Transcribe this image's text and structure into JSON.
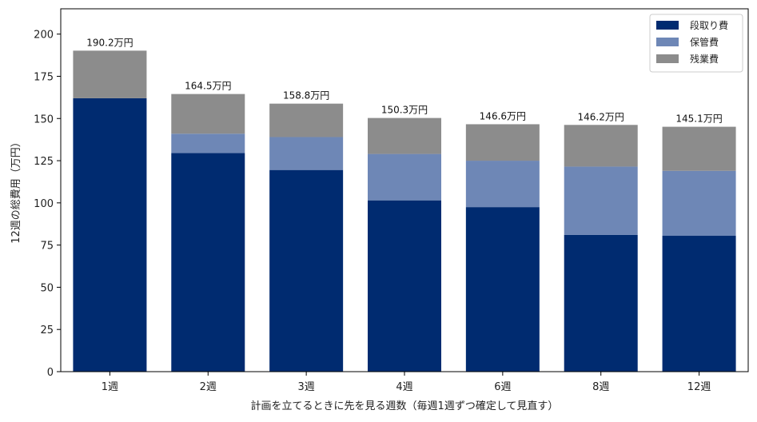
{
  "chart_data": {
    "type": "bar",
    "stacked": true,
    "title": "",
    "xlabel": "計画を立てるときに先を見る週数（毎週1週ずつ確定して見直す）",
    "ylabel": "12週の総費用（万円）",
    "ylim": [
      0,
      215
    ],
    "yticks": [
      0,
      25,
      50,
      75,
      100,
      125,
      150,
      175,
      200
    ],
    "categories": [
      "1週",
      "2週",
      "3週",
      "4週",
      "6週",
      "8週",
      "12週"
    ],
    "series": [
      {
        "name": "段取り費",
        "color": "#002b70",
        "values": [
          162,
          129.5,
          119.5,
          101.5,
          97.5,
          81,
          80.5
        ]
      },
      {
        "name": "保管費",
        "color": "#6e87b6",
        "values": [
          0,
          11.5,
          19.5,
          27.5,
          27.5,
          40.5,
          38.5
        ]
      },
      {
        "name": "残業費",
        "color": "#8c8c8c",
        "values": [
          28.2,
          23.5,
          19.8,
          21.3,
          21.6,
          24.7,
          26.1
        ]
      }
    ],
    "totals": [
      190.2,
      164.5,
      158.8,
      150.3,
      146.6,
      146.2,
      145.1
    ],
    "total_labels": [
      "190.2万円",
      "164.5万円",
      "158.8万円",
      "150.3万円",
      "146.6万円",
      "146.2万円",
      "145.1万円"
    ],
    "grid": false,
    "legend_position": "top-right"
  }
}
